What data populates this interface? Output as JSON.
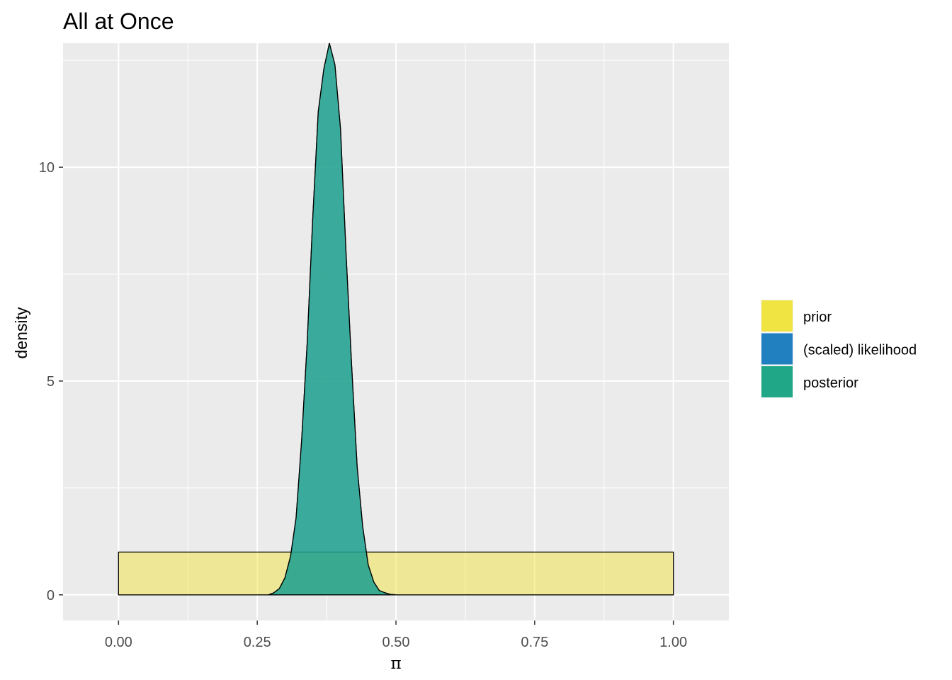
{
  "chart_data": {
    "type": "area",
    "title": "All at Once",
    "xlabel": "π",
    "ylabel": "density",
    "xlim": [
      -0.1,
      1.1
    ],
    "ylim": [
      -0.6,
      12.9
    ],
    "x_ticks": [
      0.0,
      0.25,
      0.5,
      0.75,
      1.0
    ],
    "x_tick_labels": [
      "0.00",
      "0.25",
      "0.50",
      "0.75",
      "1.00"
    ],
    "y_ticks": [
      0,
      5,
      10
    ],
    "y_tick_labels": [
      "0",
      "5",
      "10"
    ],
    "grid": true,
    "legend_position": "right",
    "legend": [
      {
        "label": "prior",
        "color": "#F0E442"
      },
      {
        "label": "(scaled) likelihood",
        "color": "#2180C0"
      },
      {
        "label": "posterior",
        "color": "#1FA787"
      }
    ],
    "series": [
      {
        "name": "prior",
        "color": "#F0E442",
        "x": [
          0.0,
          1.0
        ],
        "y": [
          1.0,
          1.0
        ]
      },
      {
        "name": "(scaled) likelihood",
        "color": "#2180C0",
        "x": [
          0.27,
          0.28,
          0.29,
          0.3,
          0.31,
          0.32,
          0.33,
          0.34,
          0.35,
          0.36,
          0.37,
          0.38,
          0.39,
          0.4,
          0.41,
          0.42,
          0.43,
          0.44,
          0.45,
          0.46,
          0.47,
          0.48,
          0.49,
          0.5
        ],
        "y": [
          0.0,
          0.05,
          0.15,
          0.4,
          0.9,
          1.8,
          3.6,
          5.9,
          8.8,
          11.3,
          12.3,
          12.9,
          12.4,
          10.9,
          8.0,
          5.4,
          3.0,
          1.6,
          0.7,
          0.3,
          0.1,
          0.05,
          0.01,
          0.0
        ]
      },
      {
        "name": "posterior",
        "color": "#1FA787",
        "x": [
          0.27,
          0.28,
          0.29,
          0.3,
          0.31,
          0.32,
          0.33,
          0.34,
          0.35,
          0.36,
          0.37,
          0.38,
          0.39,
          0.4,
          0.41,
          0.42,
          0.43,
          0.44,
          0.45,
          0.46,
          0.47,
          0.48,
          0.49,
          0.5
        ],
        "y": [
          0.0,
          0.05,
          0.15,
          0.4,
          0.9,
          1.8,
          3.6,
          5.9,
          8.8,
          11.3,
          12.3,
          12.9,
          12.4,
          10.9,
          8.0,
          5.4,
          3.0,
          1.6,
          0.7,
          0.3,
          0.1,
          0.05,
          0.01,
          0.0
        ]
      }
    ]
  }
}
